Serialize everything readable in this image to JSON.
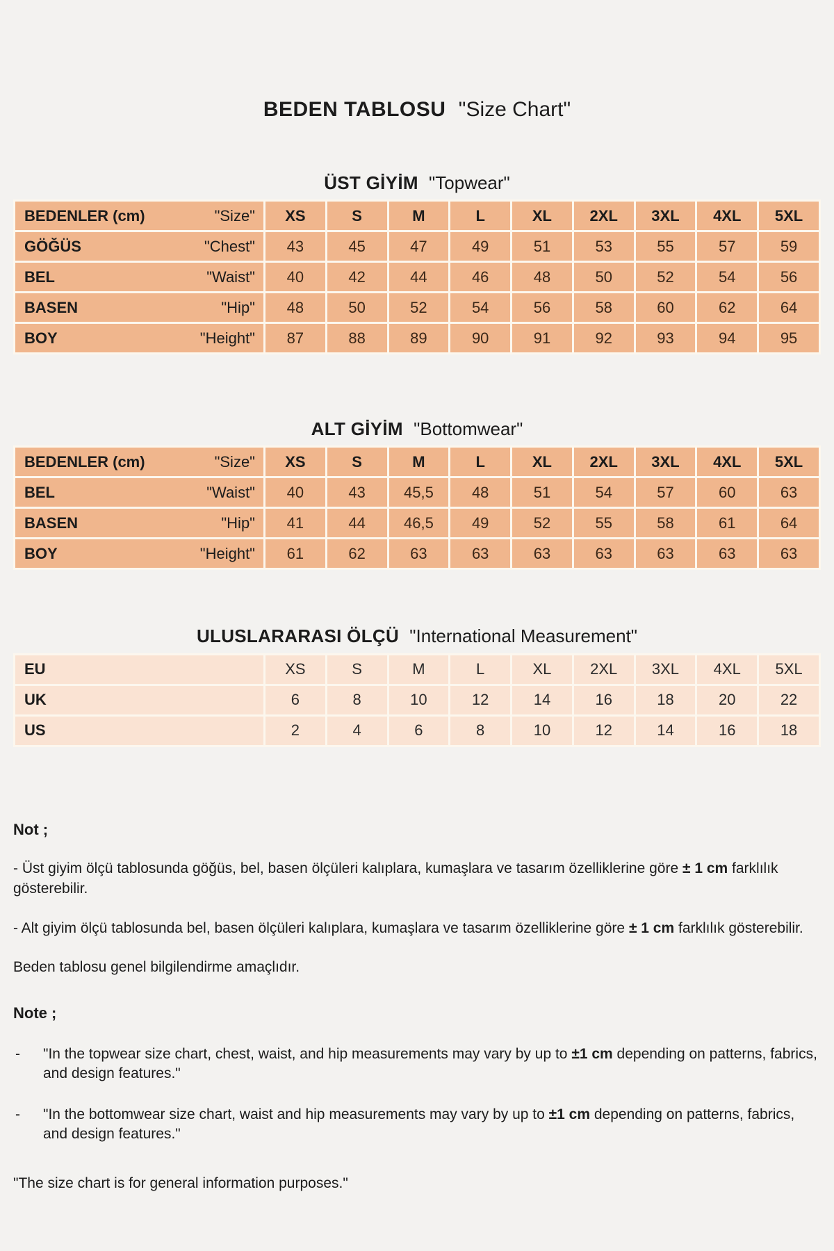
{
  "header": {
    "title_tr": "BEDEN TABLOSU",
    "title_en": "\"Size Chart\""
  },
  "tables": [
    {
      "id": "topwear",
      "title_tr": "ÜST GİYİM",
      "title_en": "\"Topwear\"",
      "header": {
        "label_tr": "BEDENLER (cm)",
        "label_en": "\"Size\"",
        "sizes": [
          "XS",
          "S",
          "M",
          "L",
          "XL",
          "2XL",
          "3XL",
          "4XL",
          "5XL"
        ]
      },
      "rows": [
        {
          "label_tr": "GÖĞÜS",
          "label_en": "\"Chest\"",
          "values": [
            "43",
            "45",
            "47",
            "49",
            "51",
            "53",
            "55",
            "57",
            "59"
          ]
        },
        {
          "label_tr": "BEL",
          "label_en": "\"Waist\"",
          "values": [
            "40",
            "42",
            "44",
            "46",
            "48",
            "50",
            "52",
            "54",
            "56"
          ]
        },
        {
          "label_tr": "BASEN",
          "label_en": "\"Hip\"",
          "values": [
            "48",
            "50",
            "52",
            "54",
            "56",
            "58",
            "60",
            "62",
            "64"
          ]
        },
        {
          "label_tr": "BOY",
          "label_en": "\"Height\"",
          "values": [
            "87",
            "88",
            "89",
            "90",
            "91",
            "92",
            "93",
            "94",
            "95"
          ]
        }
      ]
    },
    {
      "id": "bottomwear",
      "title_tr": "ALT GİYİM",
      "title_en": "\"Bottomwear\"",
      "header": {
        "label_tr": "BEDENLER (cm)",
        "label_en": "\"Size\"",
        "sizes": [
          "XS",
          "S",
          "M",
          "L",
          "XL",
          "2XL",
          "3XL",
          "4XL",
          "5XL"
        ]
      },
      "rows": [
        {
          "label_tr": "BEL",
          "label_en": "\"Waist\"",
          "values": [
            "40",
            "43",
            "45,5",
            "48",
            "51",
            "54",
            "57",
            "60",
            "63"
          ]
        },
        {
          "label_tr": "BASEN",
          "label_en": "\"Hip\"",
          "values": [
            "41",
            "44",
            "46,5",
            "49",
            "52",
            "55",
            "58",
            "61",
            "64"
          ]
        },
        {
          "label_tr": "BOY",
          "label_en": "\"Height\"",
          "values": [
            "61",
            "62",
            "63",
            "63",
            "63",
            "63",
            "63",
            "63",
            "63"
          ]
        }
      ]
    },
    {
      "id": "international",
      "title_tr": "ULUSLARARASI  ÖLÇÜ",
      "title_en": "\"International Measurement\"",
      "rows": [
        {
          "label_tr": "EU",
          "values": [
            "XS",
            "S",
            "M",
            "L",
            "XL",
            "2XL",
            "3XL",
            "4XL",
            "5XL"
          ]
        },
        {
          "label_tr": "UK",
          "values": [
            "6",
            "8",
            "10",
            "12",
            "14",
            "16",
            "18",
            "20",
            "22"
          ]
        },
        {
          "label_tr": "US",
          "values": [
            "2",
            "4",
            "6",
            "8",
            "10",
            "12",
            "14",
            "16",
            "18"
          ]
        }
      ]
    }
  ],
  "notes_tr": {
    "heading": "Not ;",
    "paragraphs": [
      {
        "parts": [
          {
            "t": "- Üst giyim ölçü tablosunda göğüs, bel, basen ölçüleri kalıplara, kumaşlara ve tasarım özelliklerine göre "
          },
          {
            "t": "± 1 cm",
            "b": true
          },
          {
            "t": " farklılık gösterebilir."
          }
        ]
      },
      {
        "parts": [
          {
            "t": "- Alt giyim ölçü tablosunda bel, basen ölçüleri kalıplara, kumaşlara ve tasarım özelliklerine göre "
          },
          {
            "t": "± 1 cm",
            "b": true
          },
          {
            "t": " farklılık gösterebilir."
          }
        ]
      },
      {
        "parts": [
          {
            "t": "Beden tablosu genel bilgilendirme amaçlıdır."
          }
        ]
      }
    ]
  },
  "notes_en": {
    "heading": "Note ;",
    "bullet_marker": "-",
    "bullets": [
      {
        "parts": [
          {
            "t": "\"In the topwear size chart, chest, waist, and hip measurements may vary by up to "
          },
          {
            "t": "±1 cm",
            "b": true
          },
          {
            "t": " depending on patterns, fabrics, and design features.\""
          }
        ]
      },
      {
        "parts": [
          {
            "t": "\"In the bottomwear size chart, waist and hip measurements may vary by up to "
          },
          {
            "t": "±1 cm",
            "b": true
          },
          {
            "t": " depending on patterns, fabrics, and design features.\""
          }
        ]
      }
    ],
    "footer": {
      "parts": [
        {
          "t": "\"The size chart is for general information purposes.\""
        }
      ]
    }
  },
  "colors": {
    "page_background": "#F3F2F0",
    "table_cell_salmon": "#F0B68D",
    "table_cell_light_peach": "#FAE3D3",
    "cell_gap": "#FCF7EE",
    "text": "#1c1c1c",
    "table_value_text": "#3A2718"
  }
}
